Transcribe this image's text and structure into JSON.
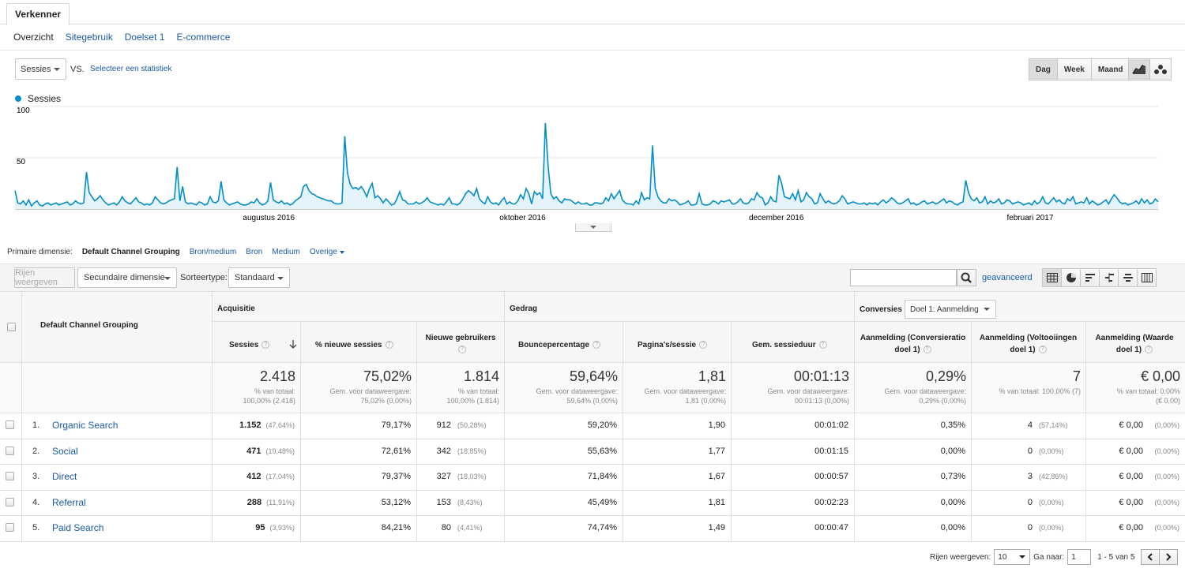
{
  "tabs": {
    "explorer": "Verkenner"
  },
  "subnav": [
    {
      "label": "Overzicht",
      "active": true
    },
    {
      "label": "Sitegebruik",
      "active": false
    },
    {
      "label": "Doelset 1",
      "active": false
    },
    {
      "label": "E-commerce",
      "active": false
    }
  ],
  "metric": {
    "selected": "Sessies",
    "vs": "VS.",
    "compare": "Selecteer een statistiek"
  },
  "granularity": [
    {
      "label": "Dag",
      "active": true
    },
    {
      "label": "Week",
      "active": false
    },
    {
      "label": "Maand",
      "active": false
    }
  ],
  "chart_types": [
    "line-chart-icon",
    "motion-chart-icon"
  ],
  "legend": {
    "label": "Sessies",
    "color": "#058dc7"
  },
  "chart_data": {
    "type": "area",
    "series": [
      {
        "name": "Sessies",
        "values": [
          18,
          6,
          5,
          8,
          4,
          9,
          3,
          6,
          8,
          4,
          3,
          5,
          6,
          4,
          5,
          6,
          4,
          5,
          6,
          7,
          4,
          5,
          8,
          6,
          5,
          6,
          36,
          16,
          12,
          8,
          10,
          13,
          9,
          6,
          4,
          5,
          6,
          4,
          7,
          12,
          8,
          6,
          5,
          8,
          11,
          7,
          6,
          4,
          5,
          4,
          6,
          12,
          9,
          6,
          5,
          6,
          8,
          9,
          10,
          41,
          8,
          22,
          7,
          5,
          6,
          5,
          4,
          7,
          6,
          4,
          5,
          12,
          7,
          6,
          8,
          27,
          9,
          6,
          4,
          5,
          6,
          7,
          5,
          4,
          4,
          5,
          7,
          6,
          10,
          6,
          4,
          5,
          8,
          26,
          9,
          7,
          6,
          8,
          5,
          6,
          4,
          5,
          8,
          10,
          12,
          22,
          24,
          18,
          15,
          14,
          12,
          11,
          10,
          9,
          8,
          8,
          6,
          5,
          5,
          6,
          71,
          35,
          24,
          20,
          21,
          19,
          22,
          18,
          12,
          20,
          25,
          11,
          13,
          10,
          6,
          10,
          7,
          4,
          5,
          10,
          17,
          9,
          8,
          5,
          5,
          5,
          7,
          5,
          6,
          8,
          11,
          7,
          6,
          5,
          4,
          5,
          4,
          7,
          11,
          5,
          5,
          4,
          6,
          10,
          15,
          18,
          16,
          13,
          20,
          10,
          7,
          5,
          12,
          7,
          5,
          6,
          4,
          8,
          11,
          5,
          7,
          5,
          5,
          8,
          14,
          10,
          20,
          15,
          5,
          17,
          14,
          16,
          10,
          84,
          42,
          15,
          10,
          12,
          8,
          6,
          10,
          9,
          9,
          7,
          5,
          7,
          5,
          5,
          6,
          4,
          4,
          6,
          6,
          5,
          6,
          11,
          8,
          15,
          10,
          14,
          18,
          9,
          6,
          5,
          5,
          4,
          8,
          5,
          16,
          9,
          11,
          10,
          62,
          20,
          12,
          8,
          6,
          6,
          10,
          8,
          9,
          7,
          4,
          5,
          6,
          8,
          4,
          4,
          5,
          15,
          5,
          4,
          4,
          5,
          8,
          7,
          5,
          8,
          7,
          8,
          9,
          5,
          5,
          7,
          10,
          6,
          5,
          6,
          10,
          9,
          16,
          12,
          11,
          4,
          6,
          12,
          8,
          7,
          33,
          25,
          12,
          11,
          10,
          15,
          9,
          18,
          7,
          9,
          16,
          12,
          10,
          5,
          6,
          15,
          10,
          6,
          8,
          6,
          5,
          6,
          8,
          13,
          10,
          5,
          6,
          7,
          6,
          5,
          5,
          6,
          4,
          6,
          5,
          6,
          4,
          7,
          9,
          6,
          8,
          11,
          9,
          6,
          5,
          6,
          8,
          10,
          5,
          6,
          4,
          5,
          7,
          8,
          5,
          6,
          7,
          5,
          6,
          8,
          10,
          6,
          8,
          7,
          5,
          4,
          6,
          7,
          28,
          16,
          10,
          8,
          11,
          6,
          7,
          12,
          5,
          8,
          6,
          7,
          10,
          5,
          6,
          9,
          8,
          5,
          6,
          7,
          6,
          4,
          5,
          6,
          4,
          8,
          5,
          7,
          12,
          6,
          5,
          8,
          11,
          7,
          9,
          6,
          5,
          10,
          8,
          12,
          5,
          6,
          7,
          6,
          11,
          5,
          8,
          6,
          4,
          5,
          7,
          9,
          5,
          10,
          14,
          11,
          7,
          5,
          6,
          4,
          5,
          6,
          8,
          5,
          10,
          6,
          9,
          5,
          6,
          10,
          7
        ]
      }
    ],
    "x_labels": [
      "augustus 2016",
      "oktober 2016",
      "december 2016",
      "februari 2017"
    ],
    "ylim": [
      0,
      100
    ],
    "y_ticks": [
      50,
      100
    ]
  },
  "dimensions": {
    "primary_label": "Primaire dimensie:",
    "selected": "Default Channel Grouping",
    "options": [
      "Bron/medium",
      "Bron",
      "Medium"
    ],
    "other": "Overige"
  },
  "toolbar": {
    "rows_button": "Rijen weergeven",
    "secondary_dim": "Secundaire dimensie",
    "sort_label": "Sorteertype:",
    "sort_value": "Standaard",
    "search_placeholder": "",
    "advanced": "geavanceerd"
  },
  "table": {
    "dim_header": "Default Channel Grouping",
    "groups": {
      "acquisition": "Acquisitie",
      "behavior": "Gedrag",
      "conversions": "Conversies",
      "goal_select": "Doel 1: Aanmelding"
    },
    "columns": [
      "Sessies",
      "% nieuwe sessies",
      "Nieuwe gebruikers",
      "Bouncepercentage",
      "Pagina's/sessie",
      "Gem. sessieduur",
      "Aanmelding (Conversieratio doel 1)",
      "Aanmelding (Voltooiingen doel 1)",
      "Aanmelding (Waarde doel 1)"
    ],
    "totals": [
      {
        "big": "2.418",
        "small1": "% van totaal:",
        "small2": "100,00% (2.418)"
      },
      {
        "big": "75,02%",
        "small1": "Gem. voor dataweergave:",
        "small2": "75,02% (0,00%)"
      },
      {
        "big": "1.814",
        "small1": "% van totaal:",
        "small2": "100,00% (1.814)"
      },
      {
        "big": "59,64%",
        "small1": "Gem. voor dataweergave:",
        "small2": "59,64% (0,00%)"
      },
      {
        "big": "1,81",
        "small1": "Gem. voor dataweergave:",
        "small2": "1,81 (0,00%)"
      },
      {
        "big": "00:01:13",
        "small1": "Gem. voor dataweergave:",
        "small2": "00:01:13 (0,00%)"
      },
      {
        "big": "0,29%",
        "small1": "Gem. voor dataweergave:",
        "small2": "0,29% (0,00%)"
      },
      {
        "big": "7",
        "small1": "% van totaal: 100,00% (7)",
        "small2": ""
      },
      {
        "big": "€ 0,00",
        "small1": "% van totaal: 0,00%",
        "small2": "(€ 0,00)"
      }
    ],
    "rows": [
      {
        "num": "1.",
        "name": "Organic Search",
        "sessions": "1.152",
        "sessions_pct": "(47,64%)",
        "new_pct": "79,17%",
        "new_users": "912",
        "new_users_pct": "(50,28%)",
        "bounce": "59,20%",
        "pages": "1,90",
        "duration": "00:01:02",
        "conv_rate": "0,35%",
        "completions": "4",
        "completions_pct": "(57,14%)",
        "value": "€ 0,00",
        "value_pct": "(0,00%)"
      },
      {
        "num": "2.",
        "name": "Social",
        "sessions": "471",
        "sessions_pct": "(19,48%)",
        "new_pct": "72,61%",
        "new_users": "342",
        "new_users_pct": "(18,85%)",
        "bounce": "55,63%",
        "pages": "1,77",
        "duration": "00:01:15",
        "conv_rate": "0,00%",
        "completions": "0",
        "completions_pct": "(0,00%)",
        "value": "€ 0,00",
        "value_pct": "(0,00%)"
      },
      {
        "num": "3.",
        "name": "Direct",
        "sessions": "412",
        "sessions_pct": "(17,04%)",
        "new_pct": "79,37%",
        "new_users": "327",
        "new_users_pct": "(18,03%)",
        "bounce": "71,84%",
        "pages": "1,67",
        "duration": "00:00:57",
        "conv_rate": "0,73%",
        "completions": "3",
        "completions_pct": "(42,86%)",
        "value": "€ 0,00",
        "value_pct": "(0,00%)"
      },
      {
        "num": "4.",
        "name": "Referral",
        "sessions": "288",
        "sessions_pct": "(11,91%)",
        "new_pct": "53,12%",
        "new_users": "153",
        "new_users_pct": "(8,43%)",
        "bounce": "45,49%",
        "pages": "1,81",
        "duration": "00:02:23",
        "conv_rate": "0,00%",
        "completions": "0",
        "completions_pct": "(0,00%)",
        "value": "€ 0,00",
        "value_pct": "(0,00%)"
      },
      {
        "num": "5.",
        "name": "Paid Search",
        "sessions": "95",
        "sessions_pct": "(3,93%)",
        "new_pct": "84,21%",
        "new_users": "80",
        "new_users_pct": "(4,41%)",
        "bounce": "74,74%",
        "pages": "1,49",
        "duration": "00:00:47",
        "conv_rate": "0,00%",
        "completions": "0",
        "completions_pct": "(0,00%)",
        "value": "€ 0,00",
        "value_pct": "(0,00%)"
      }
    ]
  },
  "pagination": {
    "rows_label": "Rijen weergeven:",
    "rows_value": "10",
    "goto_label": "Ga naar:",
    "goto_value": "1",
    "range": "1 - 5 van 5"
  }
}
